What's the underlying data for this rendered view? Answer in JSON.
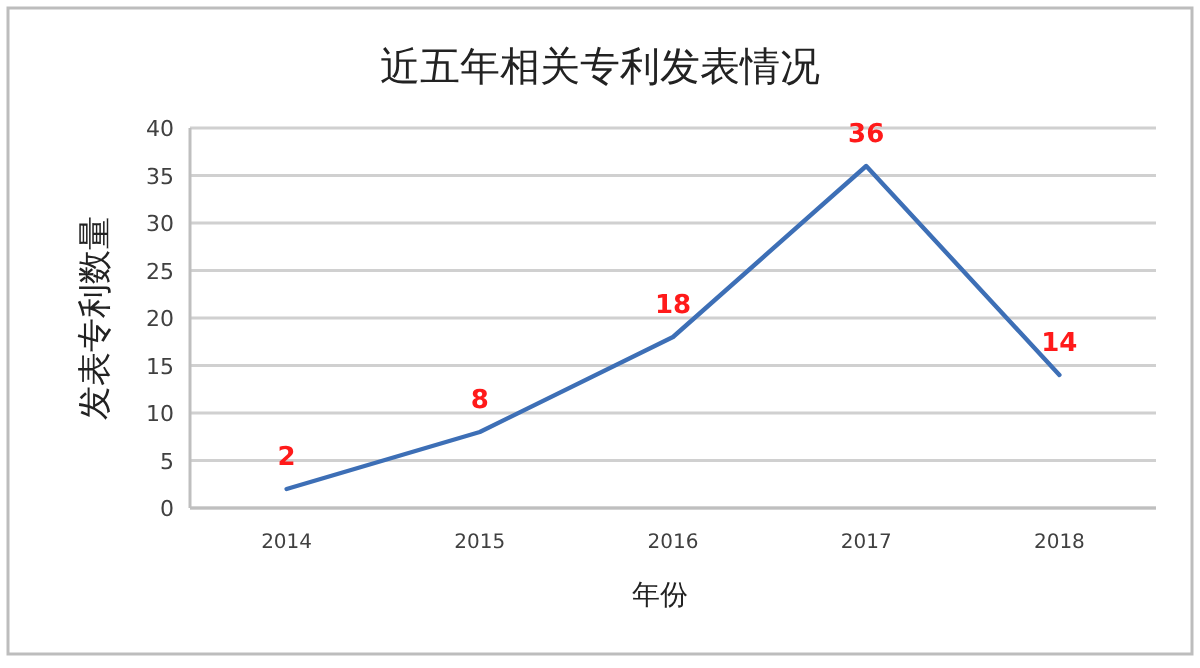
{
  "chart_data": {
    "type": "line",
    "title": "近五年相关专利发表情况",
    "xlabel": "年份",
    "ylabel": "发表专利数量",
    "categories": [
      "2014",
      "2015",
      "2016",
      "2017",
      "2018"
    ],
    "series": [
      {
        "color": "#3d6fb6",
        "values": [
          2,
          8,
          18,
          36,
          14
        ]
      }
    ],
    "ylim": [
      0,
      40
    ],
    "yticks": [
      0,
      5,
      10,
      15,
      20,
      25,
      30,
      35,
      40
    ],
    "grid": "y",
    "data_labels": true,
    "marker": "none",
    "line_style": "solid"
  }
}
